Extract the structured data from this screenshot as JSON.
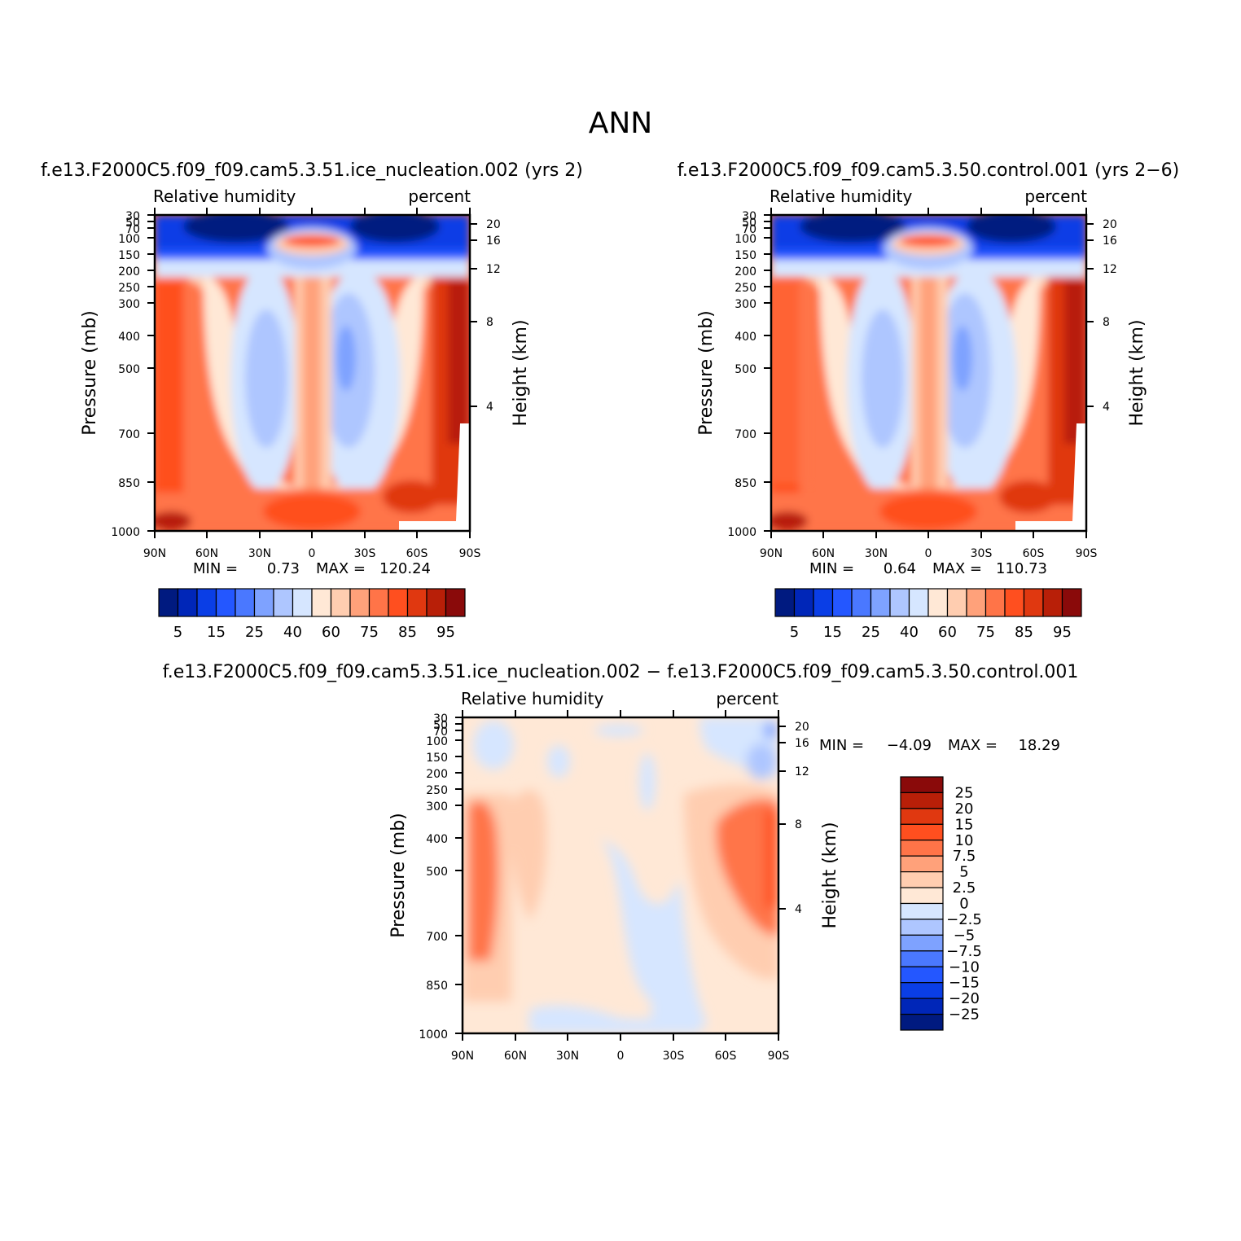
{
  "figure_title": "ANN",
  "chart_data": [
    {
      "type": "heatmap",
      "title": "f.e13.F2000C5.f09_f09.cam5.3.51.ice_nucleation.002 (yrs 2)",
      "subtitle_left": "Relative humidity",
      "subtitle_right": "percent",
      "xlabel": "",
      "ylabel": "Pressure (mb)",
      "ylabel_right": "Height (km)",
      "x_ticks": [
        "90N",
        "60N",
        "30N",
        "0",
        "30S",
        "60S",
        "90S"
      ],
      "y_ticks": [
        "30",
        "50",
        "70",
        "100",
        "150",
        "200",
        "250",
        "300",
        "400",
        "500",
        "700",
        "850",
        "1000"
      ],
      "y_right_ticks": [
        "20",
        "16",
        "12",
        "8",
        "4"
      ],
      "stats_min_label": "MIN =",
      "stats_min_value": "0.73",
      "stats_max_label": "MAX =",
      "stats_max_value": "120.24",
      "colorbar_orientation": "horizontal",
      "colorbar_labels": [
        "5",
        "15",
        "25",
        "40",
        "60",
        "75",
        "85",
        "95"
      ],
      "colorbar_colors": [
        "#001a80",
        "#0026b8",
        "#0a3ee6",
        "#2457ff",
        "#4a78ff",
        "#7ea2ff",
        "#aec6ff",
        "#d6e6ff",
        "#ffe8d6",
        "#ffcdb0",
        "#ffa17a",
        "#ff7448",
        "#ff4f1f",
        "#e03810",
        "#b81f08",
        "#8a0a0a"
      ]
    },
    {
      "type": "heatmap",
      "title": "f.e13.F2000C5.f09_f09.cam5.3.50.control.001 (yrs 2−6)",
      "subtitle_left": "Relative humidity",
      "subtitle_right": "percent",
      "xlabel": "",
      "ylabel": "Pressure (mb)",
      "ylabel_right": "Height (km)",
      "x_ticks": [
        "90N",
        "60N",
        "30N",
        "0",
        "30S",
        "60S",
        "90S"
      ],
      "y_ticks": [
        "30",
        "50",
        "70",
        "100",
        "150",
        "200",
        "250",
        "300",
        "400",
        "500",
        "700",
        "850",
        "1000"
      ],
      "y_right_ticks": [
        "20",
        "16",
        "12",
        "8",
        "4"
      ],
      "stats_min_label": "MIN =",
      "stats_min_value": "0.64",
      "stats_max_label": "MAX =",
      "stats_max_value": "110.73",
      "colorbar_orientation": "horizontal",
      "colorbar_labels": [
        "5",
        "15",
        "25",
        "40",
        "60",
        "75",
        "85",
        "95"
      ],
      "colorbar_colors": [
        "#001a80",
        "#0026b8",
        "#0a3ee6",
        "#2457ff",
        "#4a78ff",
        "#7ea2ff",
        "#aec6ff",
        "#d6e6ff",
        "#ffe8d6",
        "#ffcdb0",
        "#ffa17a",
        "#ff7448",
        "#ff4f1f",
        "#e03810",
        "#b81f08",
        "#8a0a0a"
      ]
    },
    {
      "type": "heatmap",
      "title": "f.e13.F2000C5.f09_f09.cam5.3.51.ice_nucleation.002 − f.e13.F2000C5.f09_f09.cam5.3.50.control.001",
      "subtitle_left": "Relative humidity",
      "subtitle_right": "percent",
      "xlabel": "",
      "ylabel": "Pressure (mb)",
      "ylabel_right": "Height (km)",
      "x_ticks": [
        "90N",
        "60N",
        "30N",
        "0",
        "30S",
        "60S",
        "90S"
      ],
      "y_ticks": [
        "30",
        "50",
        "70",
        "100",
        "150",
        "200",
        "250",
        "300",
        "400",
        "500",
        "700",
        "850",
        "1000"
      ],
      "y_right_ticks": [
        "20",
        "16",
        "12",
        "8",
        "4"
      ],
      "stats_min_label": "MIN =",
      "stats_min_value": "−4.09",
      "stats_max_label": "MAX =",
      "stats_max_value": "18.29",
      "colorbar_orientation": "vertical",
      "colorbar_labels": [
        "25",
        "20",
        "15",
        "10",
        "7.5",
        "5",
        "2.5",
        "0",
        "−2.5",
        "−5",
        "−7.5",
        "−10",
        "−15",
        "−20",
        "−25"
      ],
      "colorbar_colors": [
        "#8a0a0a",
        "#b81f08",
        "#e03810",
        "#ff4f1f",
        "#ff7448",
        "#ffa17a",
        "#ffcdb0",
        "#ffe8d6",
        "#d6e6ff",
        "#aec6ff",
        "#7ea2ff",
        "#4a78ff",
        "#2457ff",
        "#0a3ee6",
        "#0026b8",
        "#001a80"
      ]
    }
  ]
}
